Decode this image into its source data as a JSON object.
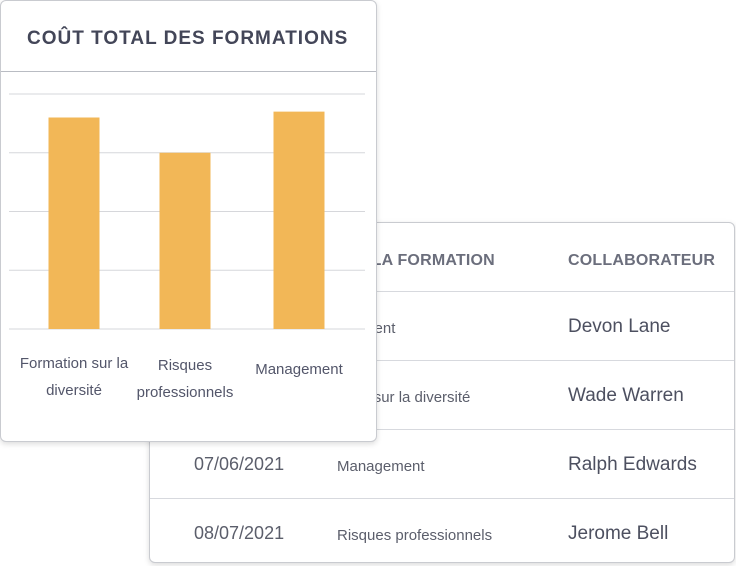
{
  "table": {
    "columns": {
      "name": "N DE LA FORMATION",
      "collaborator": "COLLABORATEUR"
    },
    "rows": [
      {
        "date": "",
        "name": "agement",
        "collaborator": "Devon Lane"
      },
      {
        "date": "",
        "name": "ation sur la diversité",
        "collaborator": "Wade Warren"
      },
      {
        "date": "07/06/2021",
        "name": "Management",
        "collaborator": "Ralph Edwards"
      },
      {
        "date": "08/07/2021",
        "name": "Risques professionnels",
        "collaborator": "Jerome Bell"
      }
    ]
  },
  "chart_card": {
    "title": "COÛT TOTAL DES FORMATIONS"
  },
  "chart_data": {
    "type": "bar",
    "title": "COÛT TOTAL DES FORMATIONS",
    "categories": [
      "Formation sur la diversité",
      "Risques professionnels",
      "Management"
    ],
    "category_lines": [
      [
        "Formation sur la",
        "diversité"
      ],
      [
        "Risques",
        "professionnels"
      ],
      [
        "Management"
      ]
    ],
    "values": [
      3.6,
      3.0,
      3.7
    ],
    "ylim": [
      0,
      4
    ],
    "grid": true,
    "bar_color": "#f2b757",
    "grid_color": "#d6d7db",
    "xlabel": "",
    "ylabel": ""
  },
  "colors": {
    "card_border": "#c9cbd0",
    "header_text": "#6b6e7c",
    "body_text": "#5b5e6b"
  }
}
